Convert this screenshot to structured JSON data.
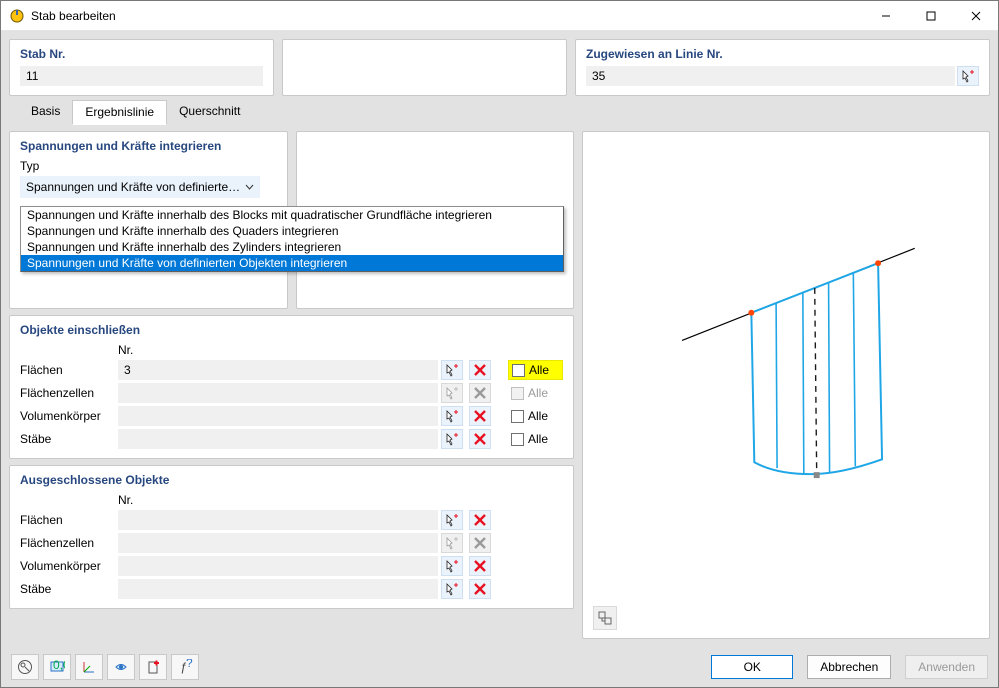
{
  "window": {
    "title": "Stab bearbeiten"
  },
  "header": {
    "stab_label": "Stab Nr.",
    "stab_value": "11",
    "linie_label": "Zugewiesen an Linie Nr.",
    "linie_value": "35"
  },
  "tabs": {
    "basis": "Basis",
    "ergebnislinie": "Ergebnislinie",
    "querschnitt": "Querschnitt",
    "active": "ergebnislinie"
  },
  "integrate": {
    "title": "Spannungen und Kräfte integrieren",
    "typ_label": "Typ",
    "selected_display": "Spannungen und Kräfte von definierten ...",
    "options": [
      "Spannungen und Kräfte innerhalb des Blocks mit quadratischer Grundfläche integrieren",
      "Spannungen und Kräfte innerhalb des Quaders integrieren",
      "Spannungen und Kräfte innerhalb des Zylinders integrieren",
      "Spannungen und Kräfte von definierten Objekten integrieren"
    ],
    "selected_index": 3
  },
  "include": {
    "title": "Objekte einschließen",
    "nr_header": "Nr.",
    "alle_label": "Alle",
    "rows": [
      {
        "label": "Flächen",
        "value": "3",
        "enabled": true,
        "alle_highlight": true,
        "alle_checked": false
      },
      {
        "label": "Flächenzellen",
        "value": "",
        "enabled": false,
        "alle_highlight": false,
        "alle_checked": false
      },
      {
        "label": "Volumenkörper",
        "value": "",
        "enabled": true,
        "alle_highlight": false,
        "alle_checked": false
      },
      {
        "label": "Stäbe",
        "value": "",
        "enabled": true,
        "alle_highlight": false,
        "alle_checked": false
      }
    ]
  },
  "exclude": {
    "title": "Ausgeschlossene Objekte",
    "nr_header": "Nr.",
    "rows": [
      {
        "label": "Flächen",
        "value": "",
        "enabled": true
      },
      {
        "label": "Flächenzellen",
        "value": "",
        "enabled": false
      },
      {
        "label": "Volumenkörper",
        "value": "",
        "enabled": true
      },
      {
        "label": "Stäbe",
        "value": "",
        "enabled": true
      }
    ]
  },
  "preview": {
    "line_color": "#000000",
    "surface_stroke": "#1fa6e6",
    "dash_color": "#1a1a1a",
    "node_color": "#ff4500"
  },
  "footer": {
    "ok": "OK",
    "cancel": "Abbrechen",
    "apply": "Anwenden"
  },
  "colors": {
    "accent_bg": "#eaf2fb",
    "accent_border": "#cddff1",
    "section_title": "#27477f",
    "selection": "#0078d7",
    "highlight": "#ffff00",
    "red_x": "#e81123"
  }
}
